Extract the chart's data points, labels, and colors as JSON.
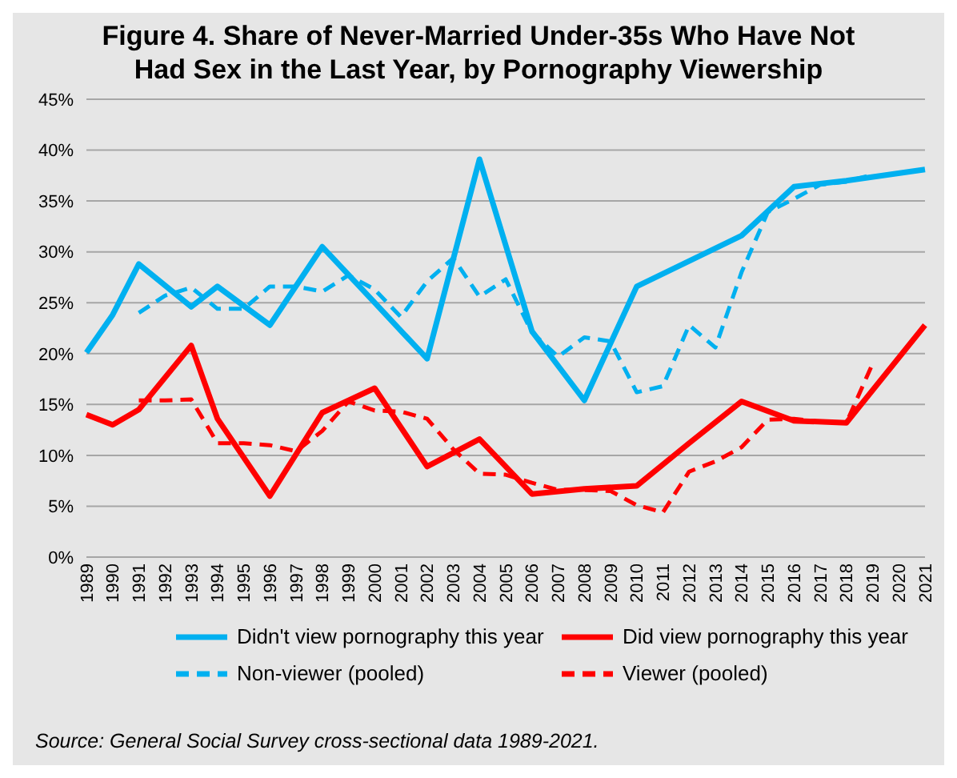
{
  "chart_data": {
    "type": "line",
    "title": "Figure 4. Share of Never-Married Under-35s Who Have Not Had Sex in the Last Year, by Pornography Viewership",
    "categories": [
      "1989",
      "1990",
      "1991",
      "1992",
      "1993",
      "1994",
      "1995",
      "1996",
      "1997",
      "1998",
      "1999",
      "2000",
      "2001",
      "2002",
      "2003",
      "2004",
      "2005",
      "2006",
      "2007",
      "2008",
      "2009",
      "2010",
      "2011",
      "2012",
      "2013",
      "2014",
      "2015",
      "2016",
      "2017",
      "2018",
      "2019",
      "2020",
      "2021"
    ],
    "series": [
      {
        "name": "Didn't view pornography this year",
        "color": "#00b0f0",
        "line_style": "solid",
        "values": [
          20.1,
          23.8,
          28.8,
          null,
          24.6,
          26.6,
          null,
          22.8,
          null,
          30.5,
          null,
          25.0,
          null,
          19.5,
          null,
          39.1,
          null,
          22.2,
          null,
          15.4,
          null,
          26.6,
          null,
          29.1,
          null,
          31.6,
          null,
          36.4,
          null,
          37.0,
          null,
          null,
          38.1
        ]
      },
      {
        "name": "Did view pornography this year",
        "color": "#ff0000",
        "line_style": "solid",
        "values": [
          14.0,
          13.0,
          14.5,
          null,
          20.8,
          13.6,
          null,
          6.0,
          null,
          14.2,
          null,
          16.6,
          null,
          8.9,
          null,
          11.6,
          null,
          6.2,
          null,
          6.7,
          null,
          7.0,
          null,
          11.2,
          null,
          15.3,
          null,
          13.4,
          null,
          13.2,
          null,
          null,
          22.8
        ]
      },
      {
        "name": "Non-viewer (pooled)",
        "color": "#00b0f0",
        "line_style": "dashed",
        "values": [
          null,
          null,
          24.0,
          25.7,
          26.5,
          24.4,
          24.4,
          26.6,
          26.6,
          26.1,
          27.7,
          26.3,
          23.6,
          27.1,
          29.4,
          25.6,
          27.3,
          22.1,
          19.7,
          21.6,
          21.2,
          16.2,
          16.8,
          22.8,
          20.6,
          28.0,
          33.9,
          35.2,
          36.6,
          36.9,
          37.6,
          null,
          null
        ]
      },
      {
        "name": "Viewer (pooled)",
        "color": "#ff0000",
        "line_style": "dashed",
        "values": [
          null,
          null,
          15.4,
          15.4,
          15.5,
          11.2,
          11.2,
          11.0,
          10.4,
          12.4,
          15.3,
          14.4,
          14.3,
          13.6,
          10.6,
          8.2,
          8.1,
          7.3,
          6.6,
          6.6,
          6.5,
          5.1,
          4.4,
          8.4,
          9.4,
          10.8,
          13.5,
          13.6,
          13.3,
          13.2,
          19.0,
          null,
          null
        ]
      }
    ],
    "ylim": [
      0,
      45
    ],
    "yticks": [
      {
        "value": 0,
        "label": "0%"
      },
      {
        "value": 5,
        "label": "5%"
      },
      {
        "value": 10,
        "label": "10%"
      },
      {
        "value": 15,
        "label": "15%"
      },
      {
        "value": 20,
        "label": "20%"
      },
      {
        "value": 25,
        "label": "25%"
      },
      {
        "value": 30,
        "label": "30%"
      },
      {
        "value": 35,
        "label": "35%"
      },
      {
        "value": 40,
        "label": "40%"
      },
      {
        "value": 45,
        "label": "45%"
      }
    ],
    "grid": "y",
    "legend": "bottom",
    "marker": "none",
    "annotations": [
      "Source: General Social Survey cross-sectional data 1989-2021."
    ]
  }
}
